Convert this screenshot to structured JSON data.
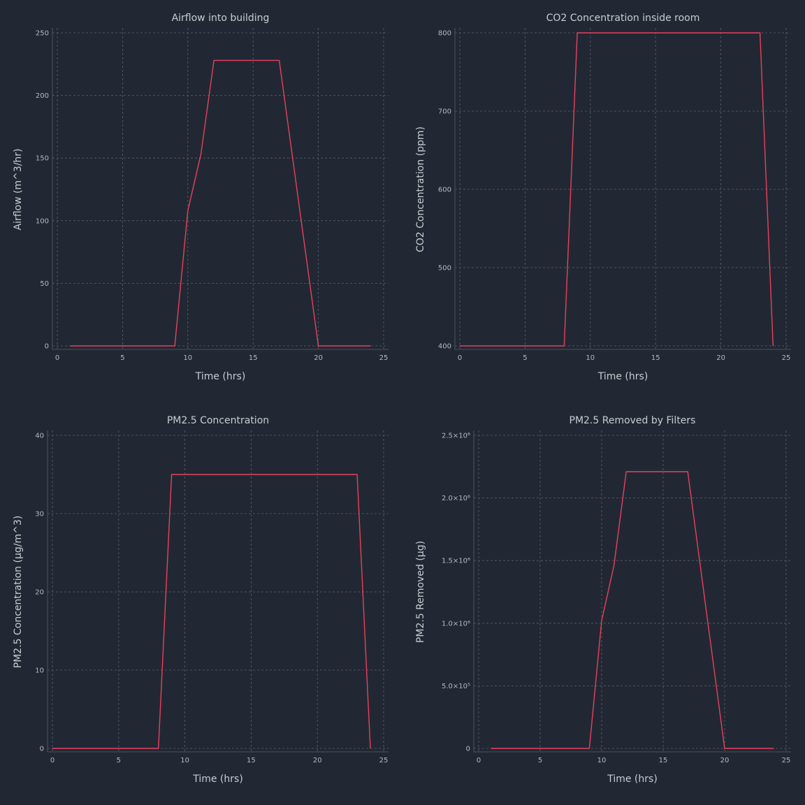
{
  "chart_data": [
    {
      "type": "line",
      "title": "Airflow into building",
      "xlabel": "Time (hrs)",
      "ylabel": "Airflow (m^3/hr)",
      "xlim": [
        0,
        25
      ],
      "ylim": [
        0,
        250
      ],
      "xticks": [
        0,
        5,
        10,
        15,
        20,
        25
      ],
      "yticks": [
        0,
        50,
        100,
        150,
        200,
        250
      ],
      "grid": true,
      "legend": "none",
      "series": [
        {
          "color": "#e8405f",
          "x": [
            1,
            9,
            10,
            11,
            12,
            17,
            20,
            24
          ],
          "y": [
            0,
            0,
            108,
            153,
            228,
            228,
            0,
            0
          ]
        }
      ]
    },
    {
      "type": "line",
      "title": "CO2 Concentration inside room",
      "xlabel": "Time (hrs)",
      "ylabel": "CO2 Concentration (ppm)",
      "xlim": [
        0,
        25
      ],
      "ylim": [
        400,
        800
      ],
      "xticks": [
        0,
        5,
        10,
        15,
        20,
        25
      ],
      "yticks": [
        400,
        500,
        600,
        700,
        800
      ],
      "grid": true,
      "legend": "none",
      "series": [
        {
          "color": "#e8405f",
          "x": [
            0,
            8,
            9,
            23,
            24
          ],
          "y": [
            400,
            400,
            800,
            800,
            400
          ]
        }
      ]
    },
    {
      "type": "line",
      "title": "PM2.5 Concentration",
      "xlabel": "Time (hrs)",
      "ylabel": "PM2.5 Concentration (μg/m^3)",
      "xlim": [
        0,
        25
      ],
      "ylim": [
        0,
        40
      ],
      "xticks": [
        0,
        5,
        10,
        15,
        20,
        25
      ],
      "yticks": [
        0,
        10,
        20,
        30,
        40
      ],
      "grid": true,
      "legend": "none",
      "series": [
        {
          "color": "#e8405f",
          "x": [
            0,
            8,
            9,
            23,
            24
          ],
          "y": [
            0,
            0,
            35,
            35,
            0
          ]
        }
      ]
    },
    {
      "type": "line",
      "title": "PM2.5 Removed by Filters",
      "xlabel": "Time (hrs)",
      "ylabel": "PM2.5 Removed (μg)",
      "xlim": [
        0,
        25
      ],
      "ylim": [
        0,
        2500000
      ],
      "xticks": [
        0,
        5,
        10,
        15,
        20,
        25
      ],
      "yticks": [
        0,
        500000,
        1000000,
        1500000,
        2000000,
        2500000
      ],
      "ytick_labels": [
        "0",
        "5.0×10⁵",
        "1.0×10⁶",
        "1.5×10⁶",
        "2.0×10⁶",
        "2.5×10⁶"
      ],
      "grid": true,
      "legend": "none",
      "series": [
        {
          "color": "#e8405f",
          "x": [
            1,
            9,
            10,
            11,
            12,
            17,
            20,
            24
          ],
          "y": [
            0,
            0,
            1020000,
            1460000,
            2210000,
            2210000,
            0,
            0
          ]
        }
      ]
    }
  ]
}
